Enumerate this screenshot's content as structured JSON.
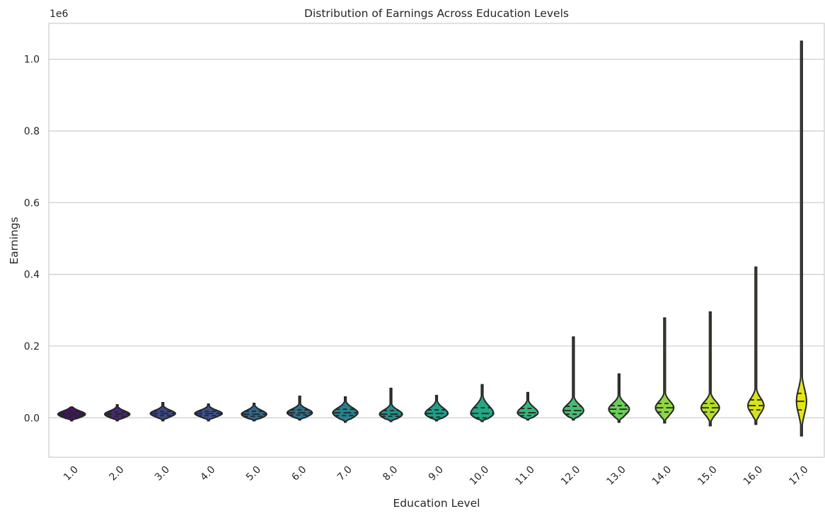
{
  "chart_data": {
    "type": "violin",
    "title": "Distribution of Earnings Across Education Levels",
    "xlabel": "Education Level",
    "ylabel": "Earnings",
    "y_offset_label": "1e6",
    "ylim": [
      -0.11,
      1.1
    ],
    "y_ticks": [
      0.0,
      0.2,
      0.4,
      0.6,
      0.8,
      1.0
    ],
    "y_tick_labels": [
      "0.0",
      "0.2",
      "0.4",
      "0.6",
      "0.8",
      "1.0"
    ],
    "grid": true,
    "palette": "viridis",
    "inner": "quartile",
    "categories": [
      "1.0",
      "2.0",
      "3.0",
      "4.0",
      "5.0",
      "6.0",
      "7.0",
      "8.0",
      "9.0",
      "10.0",
      "11.0",
      "12.0",
      "13.0",
      "14.0",
      "15.0",
      "16.0",
      "17.0"
    ],
    "colors": [
      "#471365",
      "#482878",
      "#3e4989",
      "#3b528b",
      "#31688e",
      "#2c728e",
      "#25838e",
      "#21918c",
      "#1fa088",
      "#22a884",
      "#35b779",
      "#44bf70",
      "#6ccd5a",
      "#8fd744",
      "#b5de2b",
      "#d8e219",
      "#e5e419"
    ],
    "violins": [
      {
        "min": -0.008,
        "max": 0.03,
        "q1": 0.004,
        "median": 0.01,
        "q3": 0.016,
        "maxwidth": 0.6
      },
      {
        "min": -0.008,
        "max": 0.036,
        "q1": 0.004,
        "median": 0.01,
        "q3": 0.016,
        "maxwidth": 0.55
      },
      {
        "min": -0.008,
        "max": 0.042,
        "q1": 0.006,
        "median": 0.012,
        "q3": 0.018,
        "maxwidth": 0.55
      },
      {
        "min": -0.008,
        "max": 0.038,
        "q1": 0.006,
        "median": 0.012,
        "q3": 0.018,
        "maxwidth": 0.6
      },
      {
        "min": -0.008,
        "max": 0.04,
        "q1": 0.004,
        "median": 0.01,
        "q3": 0.018,
        "maxwidth": 0.55
      },
      {
        "min": -0.006,
        "max": 0.06,
        "q1": 0.008,
        "median": 0.014,
        "q3": 0.022,
        "maxwidth": 0.55
      },
      {
        "min": -0.012,
        "max": 0.058,
        "q1": 0.006,
        "median": 0.014,
        "q3": 0.024,
        "maxwidth": 0.55
      },
      {
        "min": -0.01,
        "max": 0.082,
        "q1": 0.004,
        "median": 0.01,
        "q3": 0.02,
        "maxwidth": 0.5
      },
      {
        "min": -0.008,
        "max": 0.062,
        "q1": 0.002,
        "median": 0.012,
        "q3": 0.022,
        "maxwidth": 0.5
      },
      {
        "min": -0.01,
        "max": 0.092,
        "q1": 0.0,
        "median": 0.012,
        "q3": 0.028,
        "maxwidth": 0.5
      },
      {
        "min": -0.006,
        "max": 0.07,
        "q1": 0.006,
        "median": 0.014,
        "q3": 0.026,
        "maxwidth": 0.45
      },
      {
        "min": -0.006,
        "max": 0.225,
        "q1": 0.01,
        "median": 0.02,
        "q3": 0.032,
        "maxwidth": 0.45
      },
      {
        "min": -0.012,
        "max": 0.122,
        "q1": 0.012,
        "median": 0.024,
        "q3": 0.034,
        "maxwidth": 0.45
      },
      {
        "min": -0.014,
        "max": 0.278,
        "q1": 0.016,
        "median": 0.028,
        "q3": 0.04,
        "maxwidth": 0.4
      },
      {
        "min": -0.022,
        "max": 0.295,
        "q1": 0.016,
        "median": 0.028,
        "q3": 0.04,
        "maxwidth": 0.4
      },
      {
        "min": -0.018,
        "max": 0.42,
        "q1": 0.022,
        "median": 0.034,
        "q3": 0.05,
        "maxwidth": 0.35
      },
      {
        "min": -0.05,
        "max": 1.05,
        "q1": 0.022,
        "median": 0.046,
        "q3": 0.068,
        "maxwidth": 0.22
      }
    ]
  }
}
